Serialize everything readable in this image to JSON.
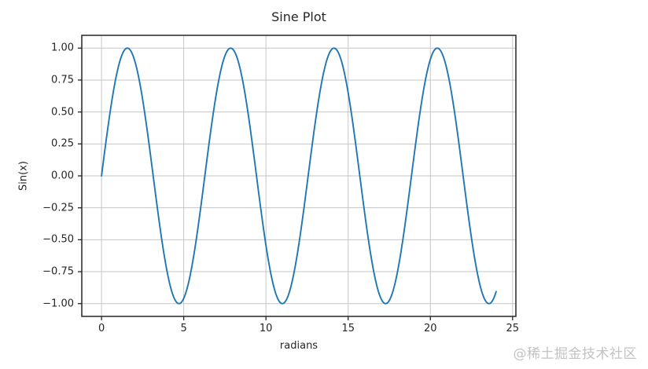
{
  "page": {
    "background": "#ffffff"
  },
  "watermark": {
    "text": "@稀土掘金技术社区",
    "color": "#c2c2c2"
  },
  "chart_data": {
    "type": "line",
    "title": "Sine Plot",
    "xlabel": "radians",
    "ylabel": "Sin(x)",
    "xlim": [
      -1.2,
      25.2
    ],
    "ylim": [
      -1.1,
      1.1
    ],
    "xticks": [
      0,
      5,
      10,
      15,
      20,
      25
    ],
    "xtick_labels": [
      "0",
      "5",
      "10",
      "15",
      "20",
      "25"
    ],
    "yticks": [
      1.0,
      0.75,
      0.5,
      0.25,
      0.0,
      -0.25,
      -0.5,
      -0.75,
      -1.0
    ],
    "ytick_labels": [
      "1.00",
      "0.75",
      "0.50",
      "0.25",
      "0.00",
      "−0.25",
      "−0.50",
      "−0.75",
      "−1.00"
    ],
    "grid": true,
    "grid_color": "#c6c6c6",
    "spine_color": "#262626",
    "tick_color": "#262626",
    "text_color": "#262626",
    "legend": "none",
    "series": [
      {
        "name": "sin(x)",
        "formula": "sin",
        "color": "#1f77b4",
        "line_width": 1.9,
        "x_min": 0,
        "x_max": 24,
        "num_points": 481
      }
    ]
  }
}
